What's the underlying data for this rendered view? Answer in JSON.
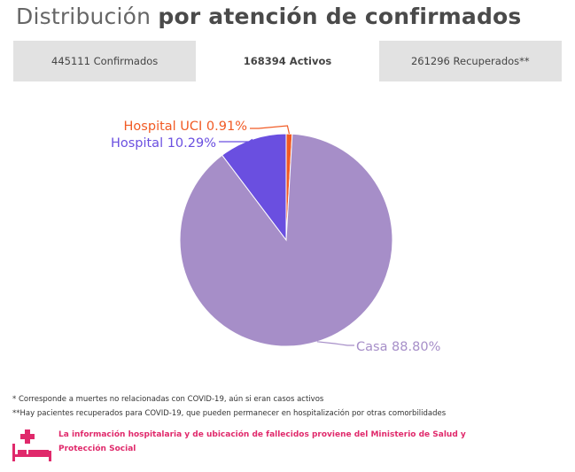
{
  "header": {
    "title_light": "Distribución",
    "title_bold": "por atención de confirmados"
  },
  "tabs": [
    {
      "label": "445111 Confirmados",
      "active": false
    },
    {
      "label": "168394 Activos",
      "active": true
    },
    {
      "label": "261296 Recuperados**",
      "active": false
    }
  ],
  "chart_data": {
    "type": "pie",
    "slices": [
      {
        "label": "Hospital UCI 0.91%",
        "value": 0.91,
        "color": "#f15a24"
      },
      {
        "label": "Hospital 10.29%",
        "value": 10.29,
        "color": "#6a4fe0"
      },
      {
        "label": "Casa 88.80%",
        "value": 88.8,
        "color": "#a68ec8"
      }
    ],
    "slice_order": "clockwise from 12 o'clock: Hospital UCI, Casa, Hospital"
  },
  "footnotes": {
    "note1": "* Corresponde a muertes no relacionadas con COVID-19, aún si eran casos activos",
    "note2": "**Hay pacientes recuperados para COVID-19, que pueden permanecer en hospitalización por otras comorbilidades"
  },
  "info": {
    "icon": "hospital-bed-icon",
    "line1": "La información hospitalaria y de ubicación de fallecidos proviene del Ministerio de Salud y",
    "line2": "Protección Social",
    "color": "#e0296b"
  }
}
